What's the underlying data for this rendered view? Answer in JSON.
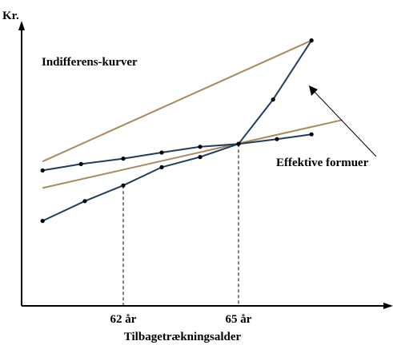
{
  "chart_data": {
    "type": "line",
    "ylabel": "Kr.",
    "xlabel": "Tilbagetrækningsalder",
    "x_ticks": [
      {
        "value": 62,
        "label": "62 år"
      },
      {
        "value": 65,
        "label": "65 år"
      }
    ],
    "series": [
      {
        "role": "effektiv-formue",
        "x": [
          59.9,
          61.0,
          62.0,
          63.0,
          64.0,
          65.0,
          65.9,
          66.9
        ],
        "y": [
          2.66,
          3.28,
          3.77,
          4.34,
          4.66,
          5.07,
          6.46,
          8.31
        ]
      },
      {
        "role": "effektiv-formue",
        "x": [
          59.9,
          60.9,
          62.0,
          63.0,
          64.0,
          65.0,
          66.0,
          66.9
        ],
        "y": [
          4.24,
          4.44,
          4.61,
          4.8,
          4.98,
          5.07,
          5.22,
          5.37
        ]
      },
      {
        "role": "indifferens-kurve",
        "x": [
          59.9,
          66.9
        ],
        "y": [
          4.52,
          8.31
        ]
      },
      {
        "role": "indifferens-kurve",
        "x": [
          59.9,
          67.7
        ],
        "y": [
          3.69,
          5.82
        ]
      }
    ],
    "colors": {
      "curve": "#1f3d5c",
      "indifference": "#a88a5c",
      "axis": "#000000"
    },
    "annotations": {
      "indifference_label": "Indifferens-kurver",
      "wealth_label": "Effektive formuer"
    }
  }
}
